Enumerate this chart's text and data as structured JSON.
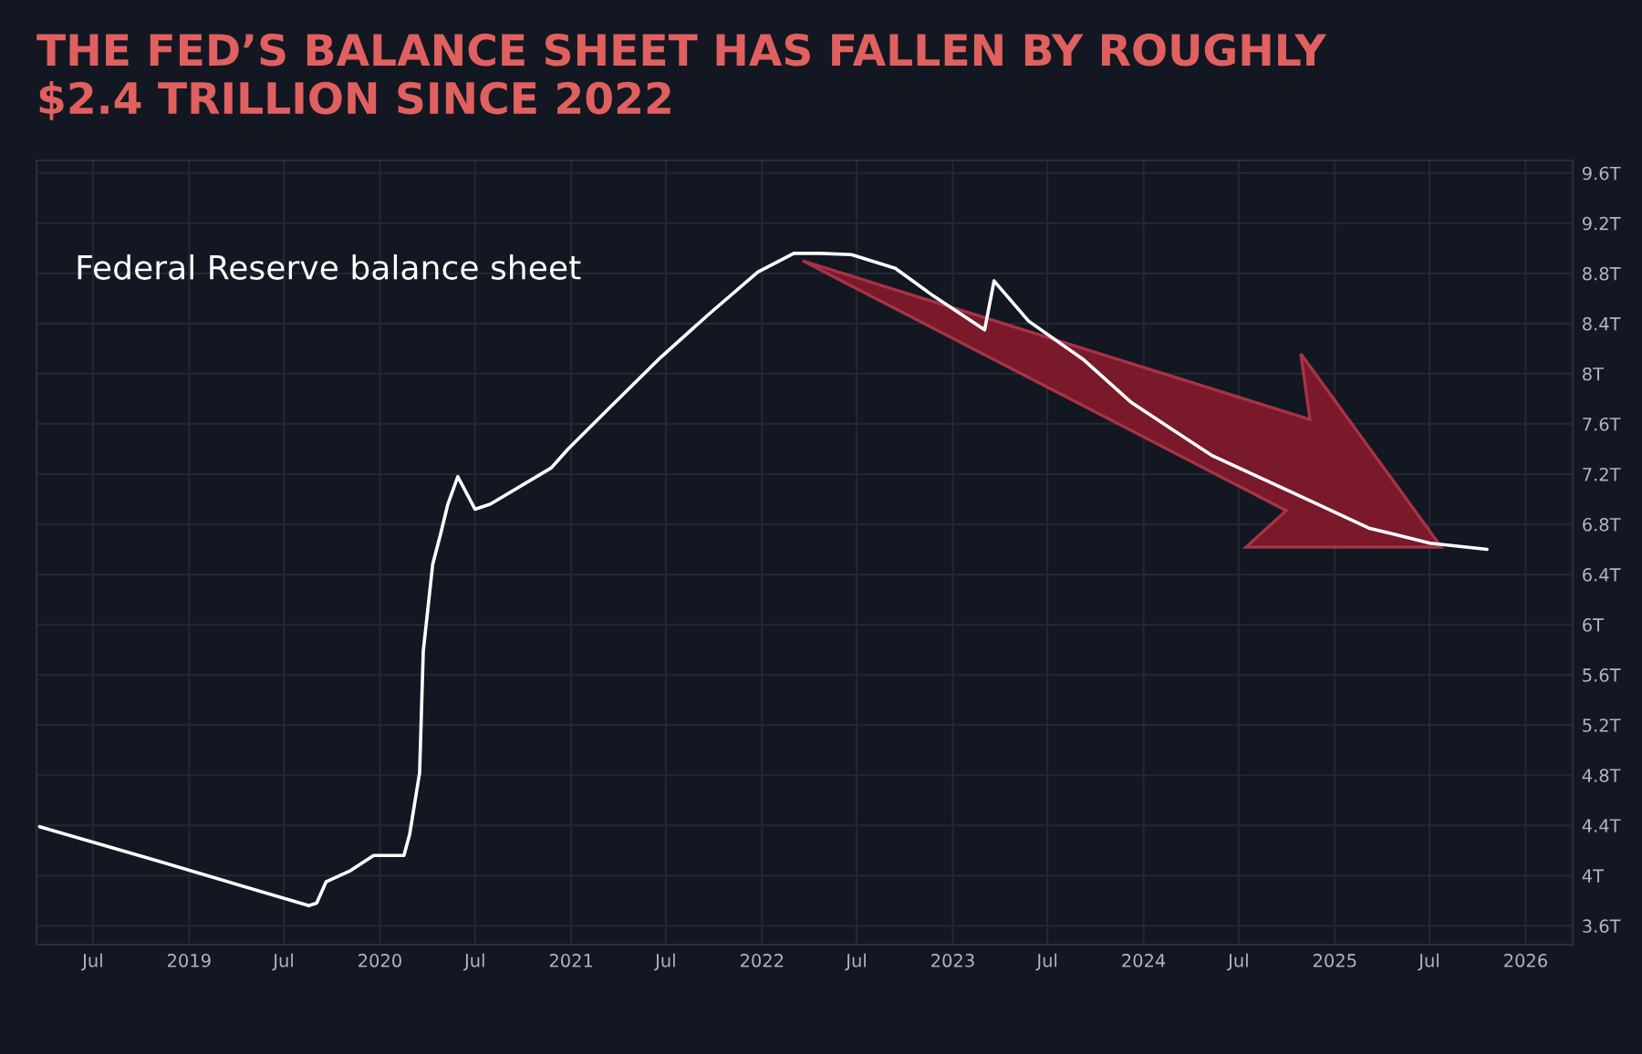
{
  "chart_data": {
    "type": "line",
    "title": "THE FED’S BALANCE SHEET HAS FALLEN BY ROUGHLY\n$2.4 TRILLION SINCE 2022",
    "x": [
      "2018-03-21",
      "2018-10-30",
      "2019-08-18",
      "2019-09-02",
      "2019-09-20",
      "2019-11-06",
      "2019-12-20",
      "2020-02-16",
      "2020-02-27",
      "2020-03-17",
      "2020-03-24",
      "2020-04-11",
      "2020-04-26",
      "2020-05-10",
      "2020-05-29",
      "2020-07-01",
      "2020-07-30",
      "2020-11-24",
      "2020-12-26",
      "2021-03-18",
      "2021-06-21",
      "2021-09-20",
      "2021-12-24",
      "2022-03-03",
      "2022-04-23",
      "2022-06-21",
      "2022-09-13",
      "2022-11-25",
      "2023-03-03",
      "2023-03-21",
      "2023-05-26",
      "2023-09-09",
      "2023-12-09",
      "2024-05-10",
      "2024-10-19",
      "2025-03-07",
      "2025-07-02",
      "2025-10-19"
    ],
    "series": [
      {
        "name": "Federal Reserve balance sheet",
        "color": "#ffffff",
        "values": [
          4.39,
          4.12,
          3.76,
          3.78,
          3.95,
          4.04,
          4.16,
          4.16,
          4.33,
          4.82,
          5.79,
          6.48,
          6.72,
          6.96,
          7.18,
          6.92,
          6.96,
          7.25,
          7.4,
          7.74,
          8.13,
          8.47,
          8.81,
          8.96,
          8.96,
          8.95,
          8.84,
          8.62,
          8.35,
          8.74,
          8.42,
          8.11,
          7.77,
          7.35,
          7.04,
          6.77,
          6.65,
          6.6
        ]
      }
    ],
    "xlim": [
      "2018-03-15",
      "2026-04-01"
    ],
    "xticks": [
      {
        "value": "2018-07-01",
        "label": "Jul"
      },
      {
        "value": "2019-01-01",
        "label": "2019"
      },
      {
        "value": "2019-07-01",
        "label": "Jul"
      },
      {
        "value": "2020-01-01",
        "label": "2020"
      },
      {
        "value": "2020-07-01",
        "label": "Jul"
      },
      {
        "value": "2021-01-01",
        "label": "2021"
      },
      {
        "value": "2021-07-01",
        "label": "Jul"
      },
      {
        "value": "2022-01-01",
        "label": "2022"
      },
      {
        "value": "2022-07-01",
        "label": "Jul"
      },
      {
        "value": "2023-01-01",
        "label": "2023"
      },
      {
        "value": "2023-07-01",
        "label": "Jul"
      },
      {
        "value": "2024-01-01",
        "label": "2024"
      },
      {
        "value": "2024-07-01",
        "label": "Jul"
      },
      {
        "value": "2025-01-01",
        "label": "2025"
      },
      {
        "value": "2025-07-01",
        "label": "Jul"
      },
      {
        "value": "2026-01-01",
        "label": "2026"
      }
    ],
    "ylim": [
      3.45,
      9.7
    ],
    "yticks": [
      {
        "value": 3.6,
        "label": "3.6T"
      },
      {
        "value": 4,
        "label": "4T"
      },
      {
        "value": 4.4,
        "label": "4.4T"
      },
      {
        "value": 4.8,
        "label": "4.8T"
      },
      {
        "value": 5.2,
        "label": "5.2T"
      },
      {
        "value": 5.6,
        "label": "5.6T"
      },
      {
        "value": 6,
        "label": "6T"
      },
      {
        "value": 6.4,
        "label": "6.4T"
      },
      {
        "value": 6.8,
        "label": "6.8T"
      },
      {
        "value": 7.2,
        "label": "7.2T"
      },
      {
        "value": 7.6,
        "label": "7.6T"
      },
      {
        "value": 8,
        "label": "8T"
      },
      {
        "value": 8.4,
        "label": "8.4T"
      },
      {
        "value": 8.8,
        "label": "8.8T"
      },
      {
        "value": 9.2,
        "label": "9.2T"
      },
      {
        "value": 9.6,
        "label": "9.6T"
      }
    ],
    "grid": true,
    "legend": false,
    "line_style": "solid"
  }
}
